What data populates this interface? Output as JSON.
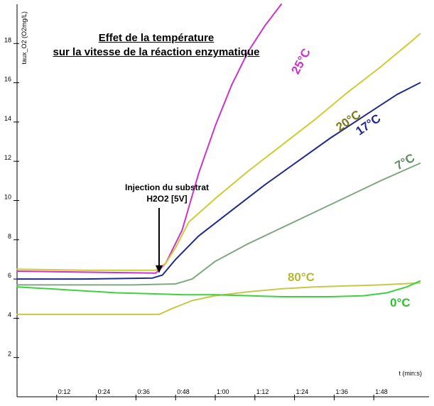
{
  "chart_data": {
    "type": "line",
    "title_line1": "Effet de la température",
    "title_line2": "sur la vitesse de la réaction enzymatique",
    "ylabel": "taux_O2 (O2mg/L)",
    "xlabel": "t (min:s)",
    "ylim": [
      0,
      20
    ],
    "xlim": [
      0,
      123
    ],
    "y_ticks": [
      2,
      4,
      6,
      8,
      10,
      12,
      14,
      16,
      18
    ],
    "x_ticks": [
      {
        "value": 12,
        "label": "0:12"
      },
      {
        "value": 24,
        "label": "0:24"
      },
      {
        "value": 36,
        "label": "0:36"
      },
      {
        "value": 48,
        "label": "0:48"
      },
      {
        "value": 60,
        "label": "1:00"
      },
      {
        "value": 72,
        "label": "1:12"
      },
      {
        "value": 84,
        "label": "1:24"
      },
      {
        "value": 96,
        "label": "1:36"
      },
      {
        "value": 108,
        "label": "1:48"
      }
    ],
    "annotation_line1": "Injection du substrat",
    "annotation_line2": "H2O2 [5V]",
    "annotation_arrow_tip": {
      "x": 43,
      "y": 6.3
    },
    "series": [
      {
        "name": "25°C",
        "color": "#cc33cc",
        "points": [
          [
            0,
            6.4
          ],
          [
            20,
            6.35
          ],
          [
            42,
            6.3
          ],
          [
            45,
            6.8
          ],
          [
            50,
            8.5
          ],
          [
            55,
            11.4
          ],
          [
            60,
            13.8
          ],
          [
            65,
            15.9
          ],
          [
            70,
            17.6
          ],
          [
            75,
            18.9
          ],
          [
            80,
            20.0
          ]
        ]
      },
      {
        "name": "20°C",
        "color": "#cccc33",
        "points": [
          [
            0,
            6.5
          ],
          [
            20,
            6.45
          ],
          [
            42,
            6.45
          ],
          [
            45,
            6.8
          ],
          [
            48,
            7.6
          ],
          [
            52,
            8.9
          ],
          [
            60,
            10.1
          ],
          [
            70,
            11.5
          ],
          [
            80,
            12.8
          ],
          [
            90,
            14.1
          ],
          [
            100,
            15.5
          ],
          [
            110,
            16.8
          ],
          [
            120,
            18.2
          ],
          [
            122,
            18.5
          ]
        ]
      },
      {
        "name": "17°C",
        "color": "#1f2a8f",
        "points": [
          [
            0,
            6.0
          ],
          [
            20,
            6.0
          ],
          [
            41,
            6.05
          ],
          [
            44,
            6.2
          ],
          [
            48,
            7.0
          ],
          [
            55,
            8.2
          ],
          [
            65,
            9.5
          ],
          [
            75,
            10.8
          ],
          [
            85,
            12.0
          ],
          [
            95,
            13.2
          ],
          [
            105,
            14.3
          ],
          [
            115,
            15.4
          ],
          [
            122,
            16.0
          ]
        ]
      },
      {
        "name": "7°C",
        "color": "#7fa87f",
        "points": [
          [
            0,
            5.7
          ],
          [
            35,
            5.7
          ],
          [
            48,
            5.75
          ],
          [
            53,
            6.0
          ],
          [
            60,
            6.9
          ],
          [
            70,
            7.8
          ],
          [
            80,
            8.6
          ],
          [
            90,
            9.4
          ],
          [
            100,
            10.2
          ],
          [
            110,
            11.0
          ],
          [
            122,
            11.9
          ]
        ]
      },
      {
        "name": "80°C",
        "color": "#c8c846",
        "points": [
          [
            0,
            4.2
          ],
          [
            30,
            4.2
          ],
          [
            43,
            4.2
          ],
          [
            47,
            4.5
          ],
          [
            53,
            4.9
          ],
          [
            60,
            5.15
          ],
          [
            70,
            5.35
          ],
          [
            80,
            5.5
          ],
          [
            90,
            5.6
          ],
          [
            100,
            5.65
          ],
          [
            110,
            5.7
          ],
          [
            122,
            5.8
          ]
        ]
      },
      {
        "name": "0°C",
        "color": "#3fd03f",
        "points": [
          [
            0,
            5.6
          ],
          [
            10,
            5.5
          ],
          [
            20,
            5.4
          ],
          [
            30,
            5.3
          ],
          [
            40,
            5.25
          ],
          [
            50,
            5.2
          ],
          [
            60,
            5.2
          ],
          [
            70,
            5.15
          ],
          [
            80,
            5.1
          ],
          [
            95,
            5.1
          ],
          [
            105,
            5.15
          ],
          [
            112,
            5.3
          ],
          [
            118,
            5.6
          ],
          [
            122,
            5.9
          ]
        ]
      }
    ],
    "labels": [
      {
        "text": "25°C",
        "color": "#cc33cc",
        "x": 87,
        "y": 17.0,
        "angle": -62
      },
      {
        "text": "20°C",
        "color": "#7a7a1a",
        "x": 101,
        "y": 13.9,
        "angle": -35
      },
      {
        "text": "17°C",
        "color": "#1f2a8f",
        "x": 107,
        "y": 13.7,
        "angle": -35
      },
      {
        "text": "7°C",
        "color": "#5f8c5f",
        "x": 118,
        "y": 11.8,
        "angle": -30
      },
      {
        "text": "80°C",
        "color": "#b8b830",
        "x": 86,
        "y": 5.9,
        "angle": 0
      },
      {
        "text": "0°C",
        "color": "#2ec02e",
        "x": 116,
        "y": 4.6,
        "angle": 0
      }
    ]
  }
}
